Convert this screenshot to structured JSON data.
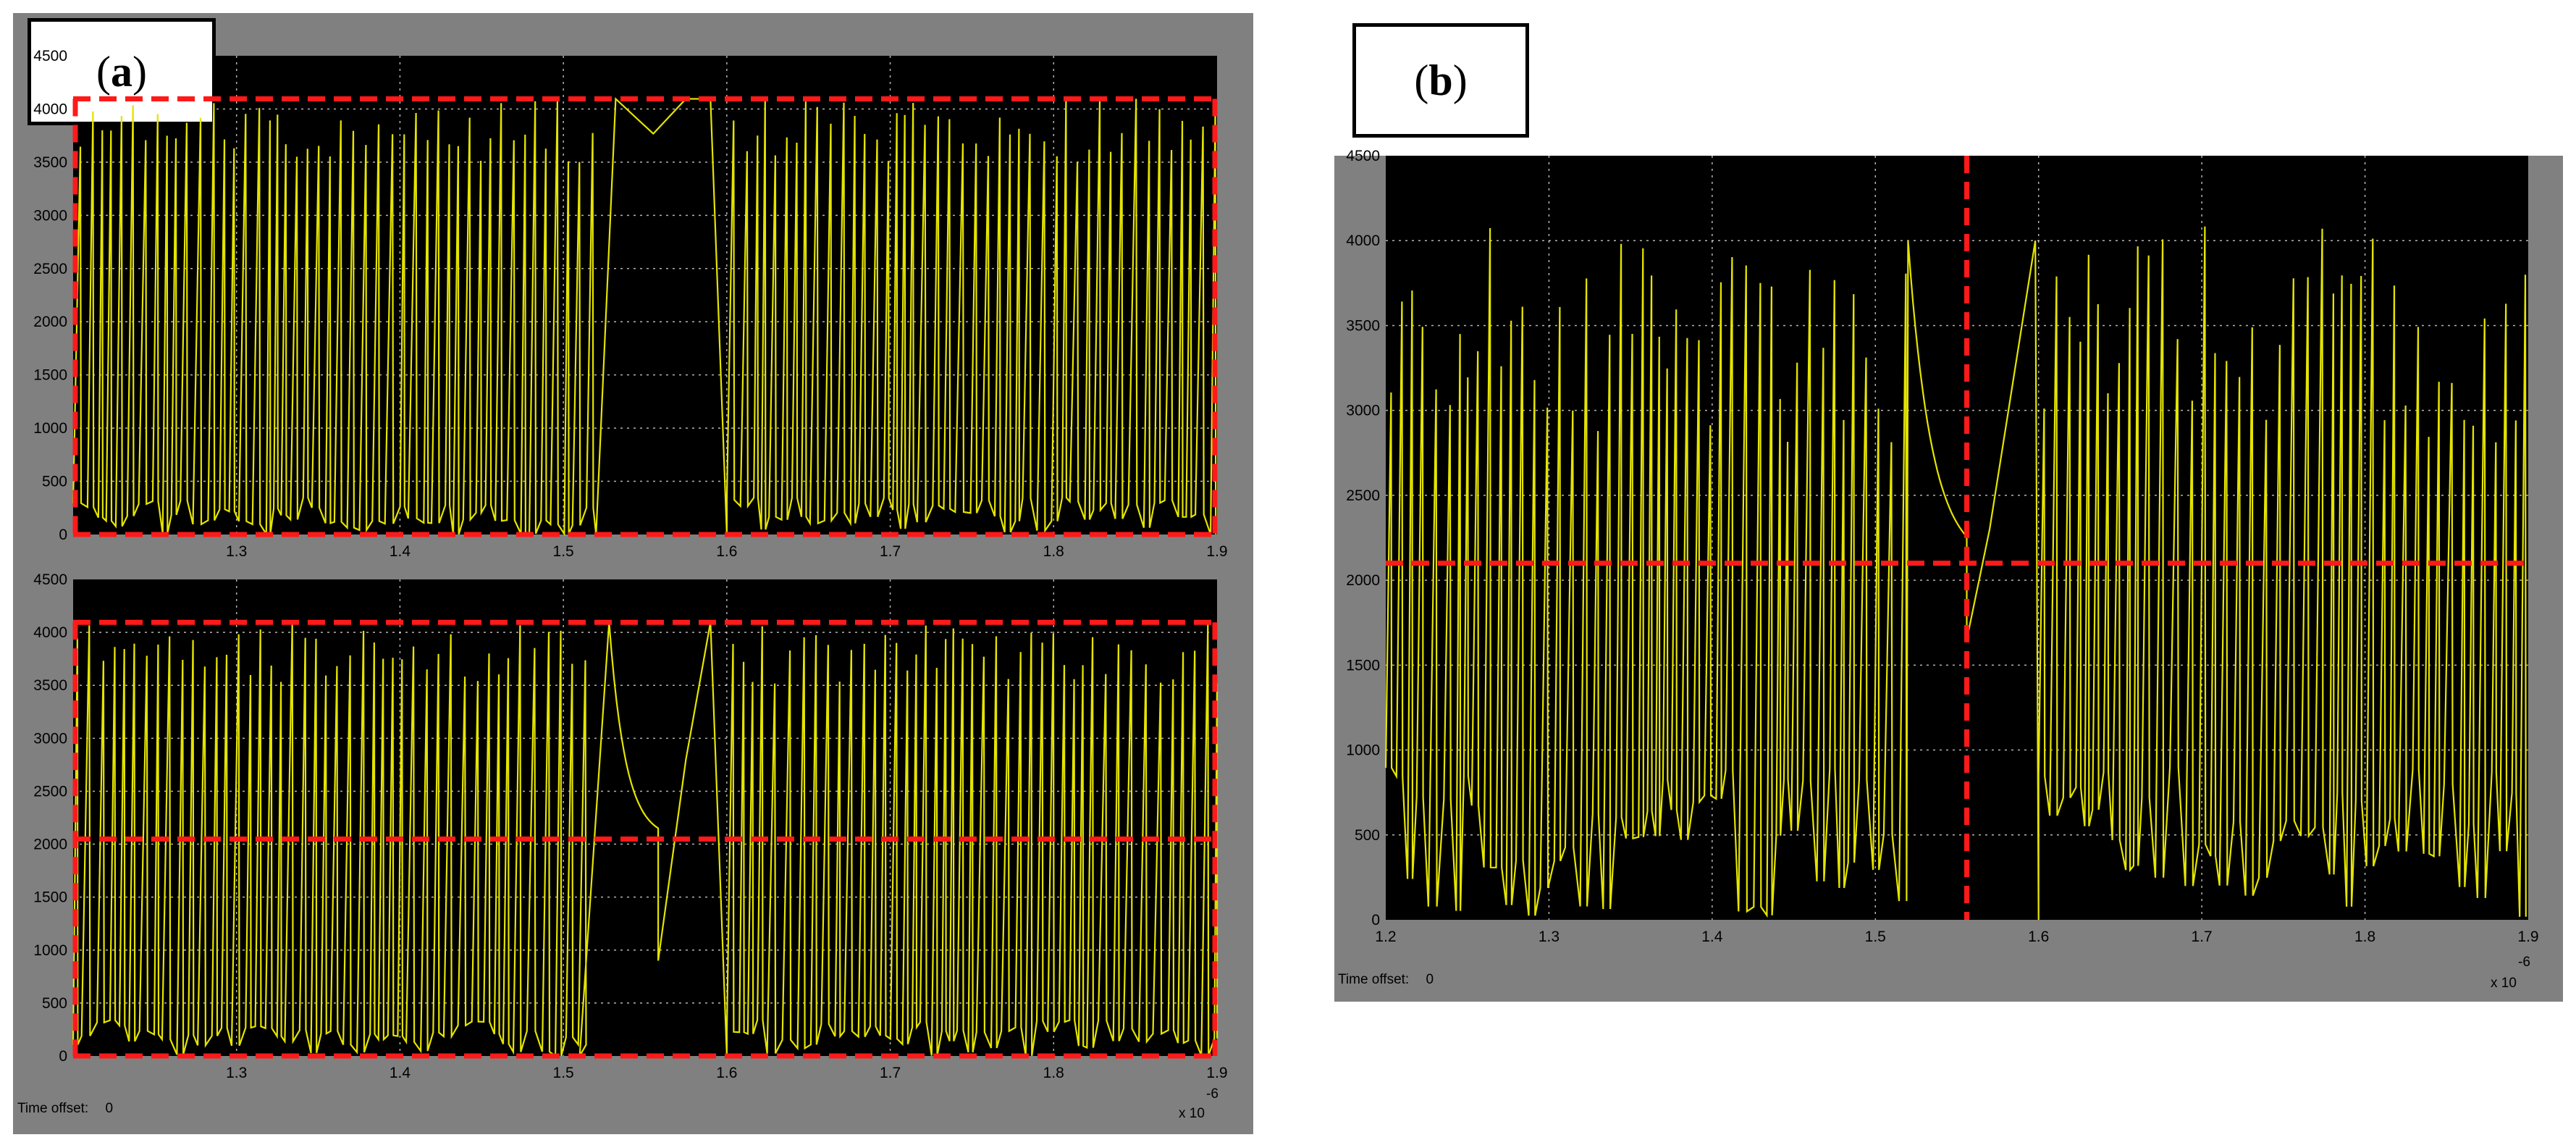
{
  "panels": [
    {
      "label": "a",
      "time_offset_label": "Time offset:",
      "time_offset_value": "0",
      "exponent_base": "x 10",
      "exponent": "-6"
    },
    {
      "label": "b",
      "time_offset_label": "Time offset:",
      "time_offset_value": "0",
      "exponent_base": "x 10",
      "exponent": "-6"
    }
  ],
  "colors": {
    "signal": "#e4e400",
    "dashed_guides": "#ff1a1a",
    "axes_bg": "#000000",
    "frame": "#808080",
    "grid": "#ffffff"
  },
  "chart_data": [
    {
      "panel": "a",
      "subplot": "top",
      "type": "line",
      "xlim": [
        1.2,
        1.9
      ],
      "ylim": [
        0,
        4500
      ],
      "x_ticks": [
        "1.3",
        "1.4",
        "1.5",
        "1.6",
        "1.7",
        "1.8",
        "1.9"
      ],
      "y_ticks": [
        "0",
        "500",
        "1000",
        "1500",
        "2000",
        "2500",
        "3000",
        "3500",
        "4000",
        "4500"
      ],
      "grid": true,
      "series": [
        {
          "description": "sawtooth oscillation between ~0 and ~4095 with slow region near 1.53–1.60",
          "min": 0,
          "max": 4095,
          "slow_region": [
            1.52,
            1.6
          ]
        }
      ],
      "guides": {
        "horizontal": [
          4095,
          0
        ],
        "vertical": [
          1.2,
          1.9
        ]
      }
    },
    {
      "panel": "a",
      "subplot": "bottom",
      "type": "line",
      "xlim": [
        1.2,
        1.9
      ],
      "ylim": [
        0,
        4500
      ],
      "x_ticks": [
        "1.3",
        "1.4",
        "1.5",
        "1.6",
        "1.7",
        "1.8",
        "1.9"
      ],
      "y_ticks": [
        "0",
        "500",
        "1000",
        "1500",
        "2000",
        "2500",
        "3000",
        "3500",
        "4000",
        "4500"
      ],
      "grid": true,
      "series": [
        {
          "description": "oscillation between ~0 and ~4095; slow decay to ~2048 near 1.53 then jump to ~900",
          "min": 0,
          "max": 4095,
          "slow_region": [
            1.51,
            1.6
          ]
        }
      ],
      "guides": {
        "horizontal": [
          4095,
          2048,
          0
        ],
        "vertical": [
          1.2,
          1.9
        ]
      }
    },
    {
      "panel": "b",
      "type": "line",
      "xlim": [
        1.2,
        1.9
      ],
      "ylim": [
        0,
        4500
      ],
      "x_ticks": [
        "1.2",
        "1.3",
        "1.4",
        "1.5",
        "1.6",
        "1.7",
        "1.8",
        "1.9"
      ],
      "y_ticks": [
        "0",
        "500",
        "1000",
        "1500",
        "2000",
        "2500",
        "3000",
        "3500",
        "4000",
        "4500"
      ],
      "grid": true,
      "series": [
        {
          "description": "zoomed oscillation; slow decay from ~4000 at 1.52 to ~2100 at 1.556 then drop to ~1650 and rise",
          "min": 0,
          "max": 4100,
          "slow_region": [
            1.52,
            1.6
          ]
        }
      ],
      "guides": {
        "horizontal": [
          2100
        ],
        "vertical": [
          1.556
        ]
      }
    }
  ]
}
